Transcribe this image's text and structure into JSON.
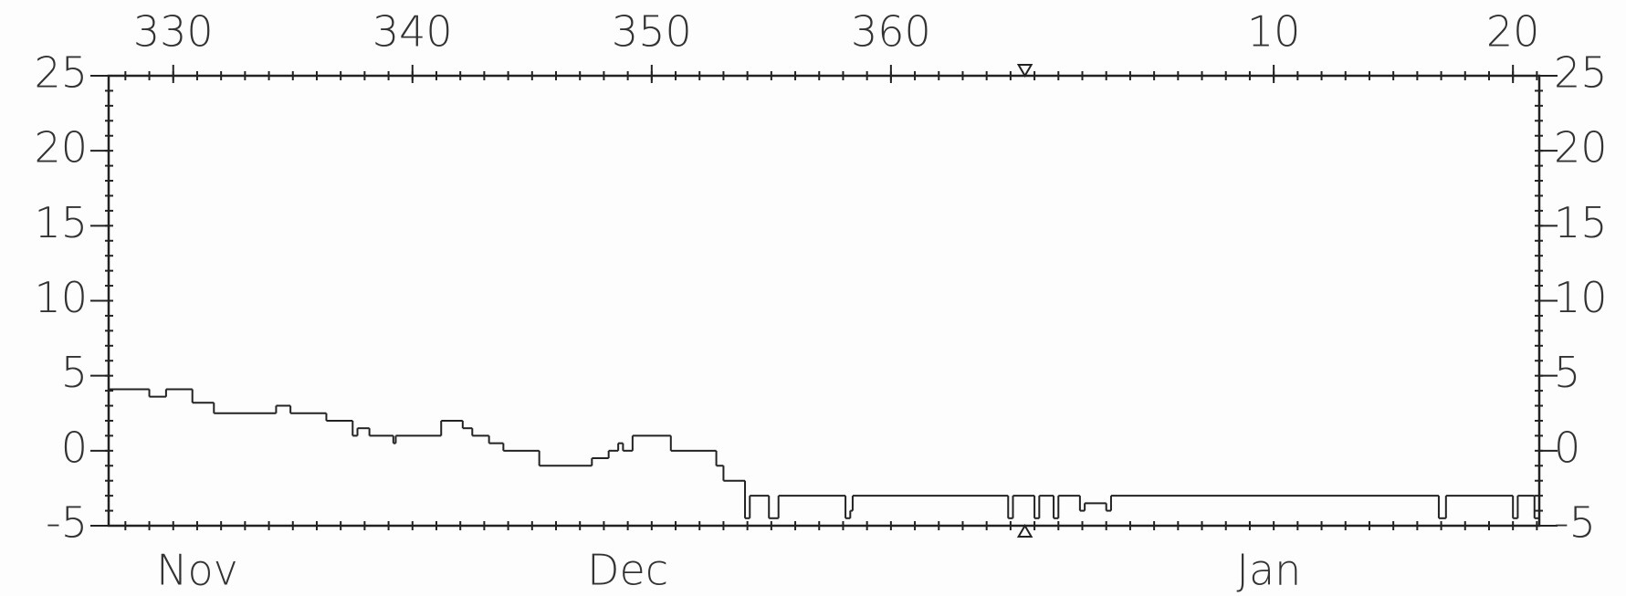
{
  "chart_data": {
    "type": "step",
    "xlim": [
      327.3,
      387.1
    ],
    "ylim": [
      -5,
      25
    ],
    "xticks": [
      330,
      340,
      350,
      360,
      {
        "value": 376,
        "label": "10"
      },
      {
        "value": 386,
        "label": "20"
      }
    ],
    "yticks": [
      -5,
      0,
      5,
      10,
      15,
      20,
      25
    ],
    "month_labels": [
      {
        "value": 331.0,
        "label": "Nov"
      },
      {
        "value": 349.0,
        "label": "Dec"
      },
      {
        "value": 375.8,
        "label": "Jan"
      }
    ],
    "marker_x": 365.6,
    "color": "#222222",
    "x": [
      327.3,
      329.0,
      329.7,
      330.8,
      331.7,
      334.3,
      334.9,
      336.4,
      337.5,
      337.7,
      338.2,
      339.2,
      339.3,
      341.2,
      342.1,
      342.5,
      343.2,
      343.8,
      345.3,
      347.5,
      348.2,
      348.6,
      348.8,
      349.2,
      350.8,
      352.7,
      353.0,
      353.9,
      354.1,
      354.9,
      355.3,
      358.1,
      358.3,
      358.4,
      364.9,
      365.1,
      366.0,
      366.2,
      366.8,
      367.0,
      367.9,
      368.1,
      369.0,
      369.2,
      382.9,
      383.2,
      386.0,
      386.2,
      386.9
    ],
    "values": [
      4.1,
      3.6,
      4.1,
      3.2,
      2.5,
      3,
      2.5,
      2,
      1,
      1.5,
      1,
      0.5,
      1,
      2,
      1.5,
      1,
      0.5,
      0,
      -1,
      -0.5,
      0,
      0.5,
      0,
      1,
      0,
      -1,
      -2,
      -4.5,
      -3,
      -4.5,
      -3,
      -4.5,
      -4,
      -3,
      -4.5,
      -3,
      -4.5,
      -3,
      -4.5,
      -3,
      -4,
      -3.5,
      -4,
      -3,
      -4.5,
      -3,
      -4.5,
      -3,
      -4.5
    ]
  }
}
